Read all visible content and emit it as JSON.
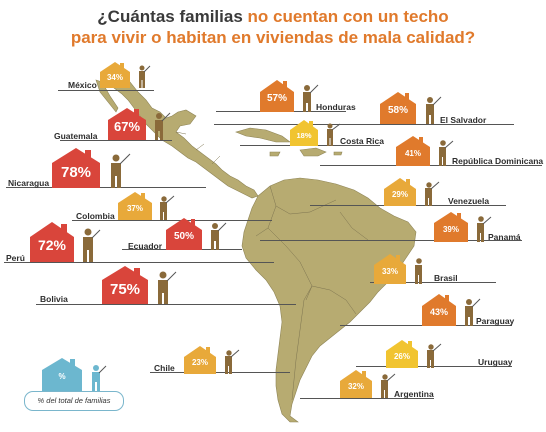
{
  "title": {
    "line1_a": "¿Cuántas familias ",
    "line1_b": "no cuentan con un techo",
    "line2": "para vivir o habitan en viviendas de mala calidad?"
  },
  "colors": {
    "low": "#e8a93a",
    "mid": "#e07a2c",
    "high": "#d9453b",
    "legend": "#6cb7cf",
    "map": "#b7ab71",
    "sea": "#ffffff"
  },
  "legend": {
    "symbol": "%",
    "label": "% del total de familias"
  },
  "countries": [
    {
      "name": "México",
      "value": "34%",
      "level": "low"
    },
    {
      "name": "Honduras",
      "value": "57%",
      "level": "mid"
    },
    {
      "name": "El Salvador",
      "value": "58%",
      "level": "mid"
    },
    {
      "name": "Guatemala",
      "value": "67%",
      "level": "high"
    },
    {
      "name": "Costa Rica",
      "value": "18%",
      "level": "low"
    },
    {
      "name": "República Dominicana",
      "value": "41%",
      "level": "mid"
    },
    {
      "name": "Nicaragua",
      "value": "78%",
      "level": "high"
    },
    {
      "name": "Venezuela",
      "value": "29%",
      "level": "low"
    },
    {
      "name": "Colombia",
      "value": "37%",
      "level": "low"
    },
    {
      "name": "Panamá",
      "value": "39%",
      "level": "mid"
    },
    {
      "name": "Ecuador",
      "value": "50%",
      "level": "mid"
    },
    {
      "name": "Perú",
      "value": "72%",
      "level": "high"
    },
    {
      "name": "Brasil",
      "value": "33%",
      "level": "low"
    },
    {
      "name": "Bolivia",
      "value": "75%",
      "level": "high"
    },
    {
      "name": "Paraguay",
      "value": "43%",
      "level": "mid"
    },
    {
      "name": "Uruguay",
      "value": "26%",
      "level": "low"
    },
    {
      "name": "Chile",
      "value": "23%",
      "level": "low"
    },
    {
      "name": "Argentina",
      "value": "32%",
      "level": "low"
    }
  ]
}
